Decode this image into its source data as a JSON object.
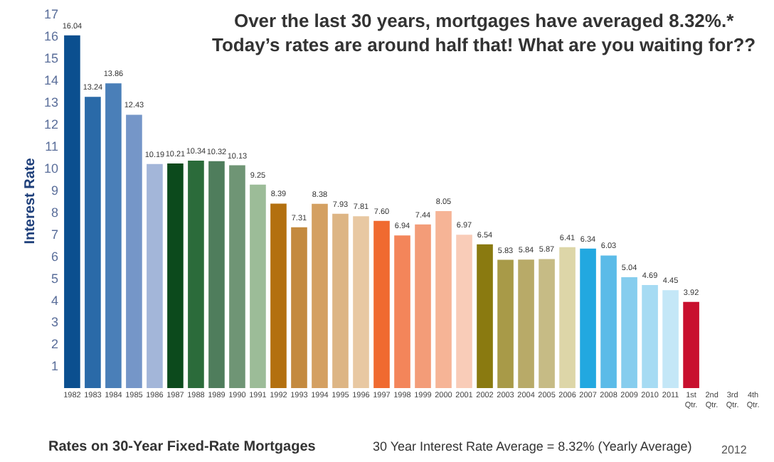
{
  "chart_data": {
    "type": "bar",
    "title": "Over the last 30 years, mortgages have averaged 8.32%.*\nToday’s rates are around half that! What are you waiting for??",
    "ylabel": "Interest Rate",
    "categories": [
      "1982",
      "1983",
      "1984",
      "1985",
      "1986",
      "1987",
      "1988",
      "1989",
      "1990",
      "1991",
      "1992",
      "1993",
      "1994",
      "1995",
      "1996",
      "1997",
      "1998",
      "1999",
      "2000",
      "2001",
      "2002",
      "2003",
      "2004",
      "2005",
      "2006",
      "2007",
      "2008",
      "2009",
      "2010",
      "2011",
      "1st Qtr.",
      "2nd Qtr.",
      "3rd Qtr.",
      "4th Qtr."
    ],
    "values": [
      16.04,
      13.24,
      13.86,
      12.43,
      10.19,
      10.21,
      10.34,
      10.32,
      10.13,
      9.25,
      8.39,
      7.31,
      8.38,
      7.93,
      7.81,
      7.6,
      6.94,
      7.44,
      8.05,
      6.97,
      6.54,
      5.83,
      5.84,
      5.87,
      6.41,
      6.34,
      6.03,
      5.04,
      4.69,
      4.45,
      3.92,
      null,
      null,
      null
    ],
    "colors": [
      "#0b4f8f",
      "#2a6aa8",
      "#4a7fb8",
      "#7596c8",
      "#a3b6d9",
      "#0c4a1c",
      "#2b6b3a",
      "#4f7d5c",
      "#6f9575",
      "#9cbc98",
      "#b3700f",
      "#c48a3f",
      "#d4a062",
      "#ddb584",
      "#e8c8a2",
      "#f06a30",
      "#f3855a",
      "#f39c78",
      "#f6b496",
      "#f9ccb8",
      "#8a7a10",
      "#a89a48",
      "#b8aa68",
      "#c6bb85",
      "#ddd6a8",
      "#22a8e0",
      "#5bbbe8",
      "#86cdee",
      "#a6dbf3",
      "#c4e7f7",
      "#c8102e",
      "#c8102e",
      "#c8102e",
      "#c8102e"
    ],
    "value_labels": [
      "16.04",
      "13.24",
      "13.86",
      "12.43",
      "10.19",
      "10.21",
      "10.34",
      "10.32",
      "10.13",
      "9.25",
      "8.39",
      "7.31",
      "8.38",
      "7.93",
      "7.81",
      "7.60",
      "6.94",
      "7.44",
      "8.05",
      "6.97",
      "6.54",
      "5.83",
      "5.84",
      "5.87",
      "6.41",
      "6.34",
      "6.03",
      "5.04",
      "4.69",
      "4.45",
      "3.92",
      null,
      null,
      null
    ],
    "ylim": [
      0,
      17
    ],
    "yticks": [
      1,
      2,
      3,
      4,
      5,
      6,
      7,
      8,
      9,
      10,
      11,
      12,
      13,
      14,
      15,
      16,
      17
    ],
    "grid": false,
    "annotations": [
      "Rates on 30-Year Fixed-Rate Mortgages",
      "30 Year Interest Rate Average = 8.32% (Yearly Average)",
      "2012"
    ]
  }
}
